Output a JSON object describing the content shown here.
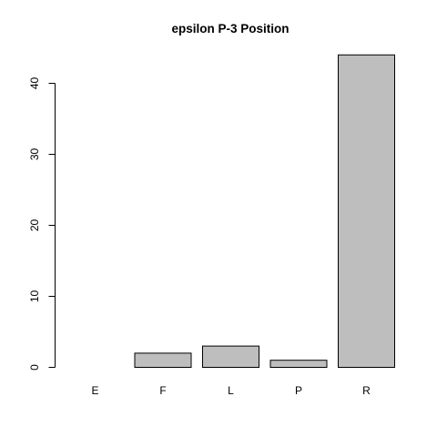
{
  "chart_data": {
    "type": "bar",
    "title": "epsilon P-3 Position",
    "xlabel": "",
    "ylabel": "",
    "categories": [
      "E",
      "F",
      "L",
      "P",
      "R"
    ],
    "values": [
      0,
      2,
      3,
      1,
      44
    ],
    "ylim": [
      0,
      45
    ],
    "yticks": [
      0,
      10,
      20,
      30,
      40
    ],
    "bar_color": "#bebebe",
    "border_color": "#000000",
    "grid": false
  }
}
